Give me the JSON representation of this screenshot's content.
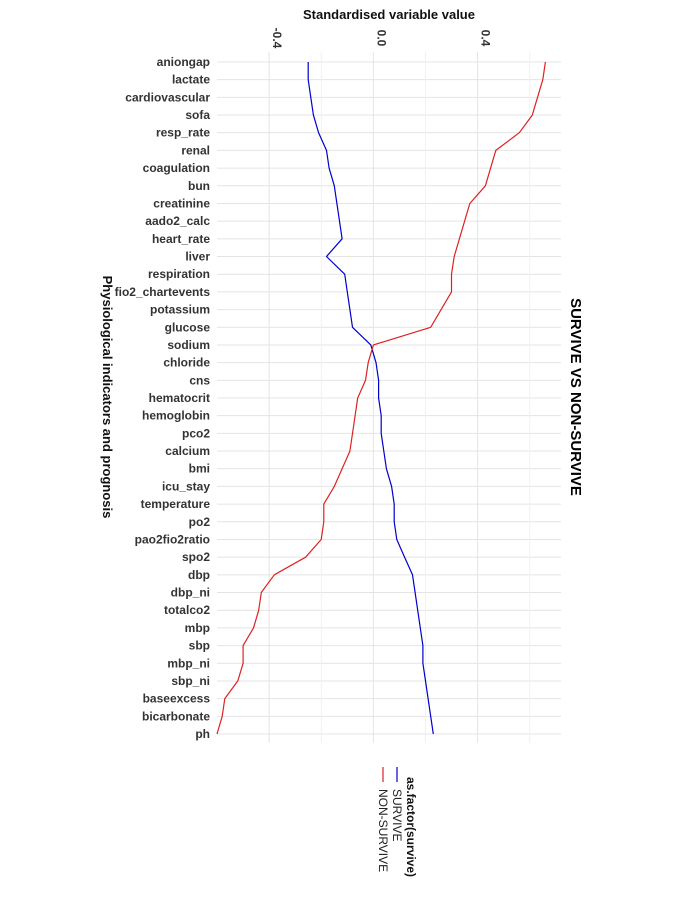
{
  "chart_data": {
    "type": "line",
    "title": "SURVIVE VS NON-SURVIVE",
    "xlabel": "Physiological indicators and prognosis",
    "ylabel": "Standardised variable value",
    "ylim": [
      -0.6,
      0.72
    ],
    "yticks": [
      -0.4,
      0.0,
      0.4
    ],
    "ytick_labels": [
      "-0.4",
      "0.0",
      "0.4"
    ],
    "grid": true,
    "legend_position": "bottom",
    "categories": [
      "aniongap",
      "lactate",
      "cardiovascular",
      "sofa",
      "resp_rate",
      "renal",
      "coagulation",
      "bun",
      "creatinine",
      "aado2_calc",
      "heart_rate",
      "liver",
      "respiration",
      "fio2_chartevents",
      "potassium",
      "glucose",
      "sodium",
      "chloride",
      "cns",
      "hematocrit",
      "hemoglobin",
      "pco2",
      "calcium",
      "bmi",
      "icu_stay",
      "temperature",
      "po2",
      "pao2fio2ratio",
      "spo2",
      "dbp",
      "dbp_ni",
      "totalco2",
      "mbp",
      "sbp",
      "mbp_ni",
      "sbp_ni",
      "baseexcess",
      "bicarbonate",
      "ph"
    ],
    "legend": {
      "title": "as.factor(survive)"
    },
    "series": [
      {
        "name": "SURVIVE",
        "color": "#0000cc",
        "values": [
          -0.25,
          -0.25,
          -0.24,
          -0.23,
          -0.21,
          -0.18,
          -0.17,
          -0.15,
          -0.14,
          -0.13,
          -0.12,
          -0.18,
          -0.11,
          -0.1,
          -0.09,
          -0.08,
          -0.01,
          0.01,
          0.02,
          0.02,
          0.03,
          0.03,
          0.04,
          0.05,
          0.07,
          0.08,
          0.08,
          0.09,
          0.12,
          0.15,
          0.16,
          0.17,
          0.18,
          0.19,
          0.19,
          0.2,
          0.21,
          0.22,
          0.23
        ]
      },
      {
        "name": "NON-SURVIVE",
        "color": "#dd2222",
        "values": [
          0.66,
          0.65,
          0.63,
          0.61,
          0.56,
          0.47,
          0.45,
          0.43,
          0.37,
          0.35,
          0.33,
          0.31,
          0.3,
          0.3,
          0.26,
          0.22,
          0.0,
          -0.02,
          -0.03,
          -0.06,
          -0.07,
          -0.08,
          -0.09,
          -0.12,
          -0.15,
          -0.19,
          -0.19,
          -0.2,
          -0.26,
          -0.38,
          -0.43,
          -0.44,
          -0.46,
          -0.5,
          -0.5,
          -0.52,
          -0.57,
          -0.58,
          -0.6
        ]
      }
    ]
  }
}
